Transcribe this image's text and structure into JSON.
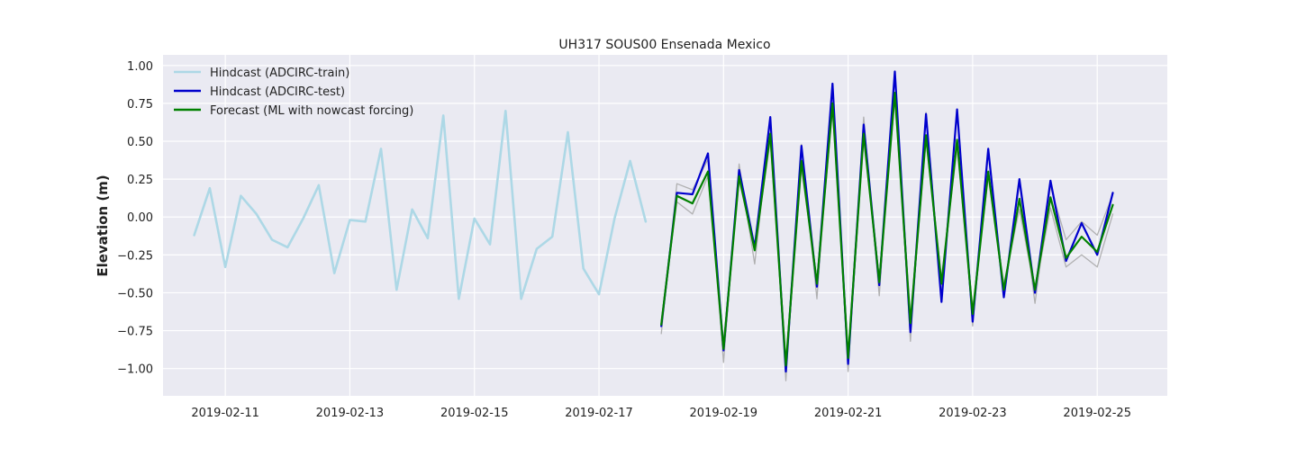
{
  "chart_data": {
    "type": "line",
    "title": "UH317 SOUS00 Ensenada Mexico",
    "xlabel": "",
    "ylabel": "Elevation (m)",
    "xlim": [
      "2019-02-10T00:00",
      "2019-02-26T03:00"
    ],
    "ylim": [
      -1.18,
      1.07
    ],
    "grid": true,
    "legend_position": "top-left",
    "x_ticks": [
      "2019-02-11",
      "2019-02-13",
      "2019-02-15",
      "2019-02-17",
      "2019-02-19",
      "2019-02-21",
      "2019-02-23",
      "2019-02-25"
    ],
    "y_ticks": [
      "1.00",
      "0.75",
      "0.50",
      "0.25",
      "0.00",
      "−0.25",
      "−0.50",
      "−0.75",
      "−1.00"
    ],
    "y_tick_values": [
      1.0,
      0.75,
      0.5,
      0.25,
      0.0,
      -0.25,
      -0.5,
      -0.75,
      -1.0
    ],
    "series": [
      {
        "name": "Hindcast (ADCIRC-train)",
        "color": "#add8e6",
        "in_legend": true,
        "x": [
          "2019-02-10T12:00",
          "2019-02-10T18:00",
          "2019-02-11T00:00",
          "2019-02-11T06:00",
          "2019-02-11T12:00",
          "2019-02-11T18:00",
          "2019-02-12T00:00",
          "2019-02-12T06:00",
          "2019-02-12T12:00",
          "2019-02-12T18:00",
          "2019-02-13T00:00",
          "2019-02-13T06:00",
          "2019-02-13T12:00",
          "2019-02-13T18:00",
          "2019-02-14T00:00",
          "2019-02-14T06:00",
          "2019-02-14T12:00",
          "2019-02-14T18:00",
          "2019-02-15T00:00",
          "2019-02-15T06:00",
          "2019-02-15T12:00",
          "2019-02-15T18:00",
          "2019-02-16T00:00",
          "2019-02-16T06:00",
          "2019-02-16T12:00",
          "2019-02-16T18:00",
          "2019-02-17T00:00",
          "2019-02-17T06:00",
          "2019-02-17T12:00",
          "2019-02-17T18:00"
        ],
        "values": [
          -0.12,
          0.19,
          -0.33,
          0.14,
          0.02,
          -0.15,
          -0.2,
          -0.01,
          0.21,
          -0.37,
          -0.02,
          -0.03,
          0.45,
          -0.48,
          0.05,
          -0.14,
          0.67,
          -0.54,
          -0.01,
          -0.18,
          0.7,
          -0.54,
          -0.21,
          -0.13,
          0.56,
          -0.34,
          -0.51,
          -0.01,
          0.37,
          -0.03
        ]
      },
      {
        "name": "",
        "color": "#aaaaaa",
        "in_legend": false,
        "x": [
          "2019-02-18T00:00",
          "2019-02-18T06:00",
          "2019-02-18T12:00",
          "2019-02-18T18:00",
          "2019-02-19T00:00",
          "2019-02-19T06:00",
          "2019-02-19T12:00",
          "2019-02-19T18:00",
          "2019-02-20T00:00",
          "2019-02-20T06:00",
          "2019-02-20T12:00",
          "2019-02-20T18:00",
          "2019-02-21T00:00",
          "2019-02-21T06:00",
          "2019-02-21T12:00",
          "2019-02-21T18:00",
          "2019-02-22T00:00",
          "2019-02-22T06:00",
          "2019-02-22T12:00",
          "2019-02-22T18:00",
          "2019-02-23T00:00",
          "2019-02-23T06:00",
          "2019-02-23T12:00",
          "2019-02-23T18:00",
          "2019-02-24T00:00",
          "2019-02-24T06:00",
          "2019-02-24T12:00",
          "2019-02-24T18:00",
          "2019-02-25T00:00",
          "2019-02-25T06:00"
        ],
        "values": [
          -0.77,
          0.22,
          0.18,
          0.38,
          -0.96,
          0.35,
          -0.31,
          0.63,
          -1.08,
          0.48,
          -0.54,
          0.86,
          -1.02,
          0.66,
          -0.52,
          0.93,
          -0.82,
          0.69,
          -0.5,
          0.69,
          -0.72,
          0.42,
          -0.52,
          0.22,
          -0.57,
          0.2,
          -0.15,
          -0.03,
          -0.12,
          0.15
        ]
      },
      {
        "name": "",
        "color": "#aaaaaa",
        "in_legend": false,
        "x": [
          "2019-02-18T00:00",
          "2019-02-18T06:00",
          "2019-02-18T12:00",
          "2019-02-18T18:00",
          "2019-02-19T00:00",
          "2019-02-19T06:00",
          "2019-02-19T12:00",
          "2019-02-19T18:00",
          "2019-02-20T00:00",
          "2019-02-20T06:00",
          "2019-02-20T12:00",
          "2019-02-20T18:00",
          "2019-02-21T00:00",
          "2019-02-21T06:00",
          "2019-02-21T12:00",
          "2019-02-21T18:00",
          "2019-02-22T00:00",
          "2019-02-22T06:00",
          "2019-02-22T12:00",
          "2019-02-22T18:00",
          "2019-02-23T00:00",
          "2019-02-23T06:00",
          "2019-02-23T12:00",
          "2019-02-23T18:00",
          "2019-02-24T00:00",
          "2019-02-24T06:00",
          "2019-02-24T12:00",
          "2019-02-24T18:00",
          "2019-02-25T00:00",
          "2019-02-25T06:00"
        ],
        "values": [
          -0.68,
          0.1,
          0.02,
          0.27,
          -0.82,
          0.24,
          -0.2,
          0.5,
          -0.95,
          0.32,
          -0.42,
          0.7,
          -0.9,
          0.5,
          -0.4,
          0.78,
          -0.7,
          0.5,
          -0.4,
          0.45,
          -0.6,
          0.26,
          -0.44,
          0.05,
          -0.49,
          0.06,
          -0.33,
          -0.25,
          -0.33,
          0.02
        ]
      },
      {
        "name": "Hindcast (ADCIRC-test)",
        "color": "#0000cd",
        "in_legend": true,
        "x": [
          "2019-02-18T00:00",
          "2019-02-18T06:00",
          "2019-02-18T12:00",
          "2019-02-18T18:00",
          "2019-02-19T00:00",
          "2019-02-19T06:00",
          "2019-02-19T12:00",
          "2019-02-19T18:00",
          "2019-02-20T00:00",
          "2019-02-20T06:00",
          "2019-02-20T12:00",
          "2019-02-20T18:00",
          "2019-02-21T00:00",
          "2019-02-21T06:00",
          "2019-02-21T12:00",
          "2019-02-21T18:00",
          "2019-02-22T00:00",
          "2019-02-22T06:00",
          "2019-02-22T12:00",
          "2019-02-22T18:00",
          "2019-02-23T00:00",
          "2019-02-23T06:00",
          "2019-02-23T12:00",
          "2019-02-23T18:00",
          "2019-02-24T00:00",
          "2019-02-24T06:00",
          "2019-02-24T12:00",
          "2019-02-24T18:00",
          "2019-02-25T00:00",
          "2019-02-25T06:00"
        ],
        "values": [
          -0.72,
          0.16,
          0.15,
          0.42,
          -0.88,
          0.31,
          -0.2,
          0.66,
          -1.02,
          0.47,
          -0.46,
          0.88,
          -0.97,
          0.61,
          -0.45,
          0.96,
          -0.76,
          0.68,
          -0.56,
          0.71,
          -0.69,
          0.45,
          -0.53,
          0.25,
          -0.5,
          0.24,
          -0.29,
          -0.04,
          -0.25,
          0.16
        ]
      },
      {
        "name": "Forecast (ML with nowcast forcing)",
        "color": "#008000",
        "in_legend": true,
        "x": [
          "2019-02-18T00:00",
          "2019-02-18T06:00",
          "2019-02-18T12:00",
          "2019-02-18T18:00",
          "2019-02-19T00:00",
          "2019-02-19T06:00",
          "2019-02-19T12:00",
          "2019-02-19T18:00",
          "2019-02-20T00:00",
          "2019-02-20T06:00",
          "2019-02-20T12:00",
          "2019-02-20T18:00",
          "2019-02-21T00:00",
          "2019-02-21T06:00",
          "2019-02-21T12:00",
          "2019-02-21T18:00",
          "2019-02-22T00:00",
          "2019-02-22T06:00",
          "2019-02-22T12:00",
          "2019-02-22T18:00",
          "2019-02-23T00:00",
          "2019-02-23T06:00",
          "2019-02-23T12:00",
          "2019-02-23T18:00",
          "2019-02-24T00:00",
          "2019-02-24T06:00",
          "2019-02-24T12:00",
          "2019-02-24T18:00",
          "2019-02-25T00:00",
          "2019-02-25T06:00"
        ],
        "values": [
          -0.71,
          0.14,
          0.09,
          0.3,
          -0.87,
          0.27,
          -0.22,
          0.55,
          -0.98,
          0.37,
          -0.44,
          0.75,
          -0.93,
          0.55,
          -0.43,
          0.82,
          -0.7,
          0.54,
          -0.44,
          0.51,
          -0.64,
          0.3,
          -0.48,
          0.12,
          -0.48,
          0.13,
          -0.27,
          -0.13,
          -0.23,
          0.08
        ]
      }
    ]
  }
}
